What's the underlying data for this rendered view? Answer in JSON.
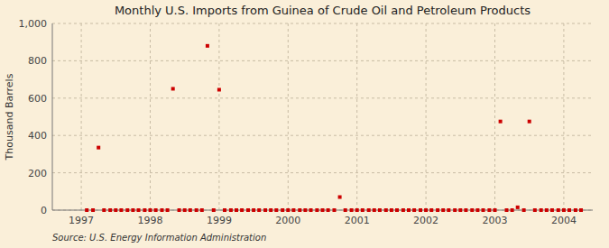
{
  "chart_data": {
    "type": "scatter",
    "title": "Monthly U.S. Imports from Guinea of Crude Oil and Petroleum Products",
    "ylabel": "Thousand Barrels",
    "annotations": [
      "Source: U.S. Energy Information Administration"
    ],
    "color": "#cc0000",
    "marker": "square",
    "grid": true,
    "xlim": [
      1996.58,
      2004.42
    ],
    "xticks": [
      1997,
      1998,
      1999,
      2000,
      2001,
      2002,
      2003,
      2004
    ],
    "ylim": [
      0,
      1000
    ],
    "yticks": [
      0,
      200,
      400,
      600,
      800,
      {
        "value": 1000,
        "label": "1,000"
      }
    ],
    "x": [
      1997.08,
      1997.17,
      1997.25,
      1997.33,
      1997.42,
      1997.5,
      1997.58,
      1997.67,
      1997.75,
      1997.83,
      1997.92,
      1998.0,
      1998.08,
      1998.17,
      1998.25,
      1998.33,
      1998.42,
      1998.5,
      1998.58,
      1998.67,
      1998.75,
      1998.83,
      1998.92,
      1999.0,
      1999.08,
      1999.17,
      1999.25,
      1999.33,
      1999.42,
      1999.5,
      1999.58,
      1999.67,
      1999.75,
      1999.83,
      1999.92,
      2000.0,
      2000.08,
      2000.17,
      2000.25,
      2000.33,
      2000.42,
      2000.5,
      2000.58,
      2000.67,
      2000.75,
      2000.83,
      2000.92,
      2001.0,
      2001.08,
      2001.17,
      2001.25,
      2001.33,
      2001.42,
      2001.5,
      2001.58,
      2001.67,
      2001.75,
      2001.83,
      2001.92,
      2002.0,
      2002.08,
      2002.17,
      2002.25,
      2002.33,
      2002.42,
      2002.5,
      2002.58,
      2002.67,
      2002.75,
      2002.83,
      2002.92,
      2003.0,
      2003.08,
      2003.17,
      2003.25,
      2003.33,
      2003.42,
      2003.5,
      2003.58,
      2003.67,
      2003.75,
      2003.83,
      2003.92,
      2004.0,
      2004.08,
      2004.17,
      2004.25
    ],
    "values": [
      0,
      0,
      335,
      0,
      0,
      0,
      0,
      0,
      0,
      0,
      0,
      0,
      0,
      0,
      0,
      650,
      0,
      0,
      0,
      0,
      0,
      880,
      0,
      645,
      0,
      0,
      0,
      0,
      0,
      0,
      0,
      0,
      0,
      0,
      0,
      0,
      0,
      0,
      0,
      0,
      0,
      0,
      0,
      0,
      70,
      0,
      0,
      0,
      0,
      0,
      0,
      0,
      0,
      0,
      0,
      0,
      0,
      0,
      0,
      0,
      0,
      0,
      0,
      0,
      0,
      0,
      0,
      0,
      0,
      0,
      0,
      0,
      475,
      0,
      0,
      15,
      0,
      475,
      0,
      0,
      0,
      0,
      0,
      0,
      0,
      0,
      0
    ]
  }
}
